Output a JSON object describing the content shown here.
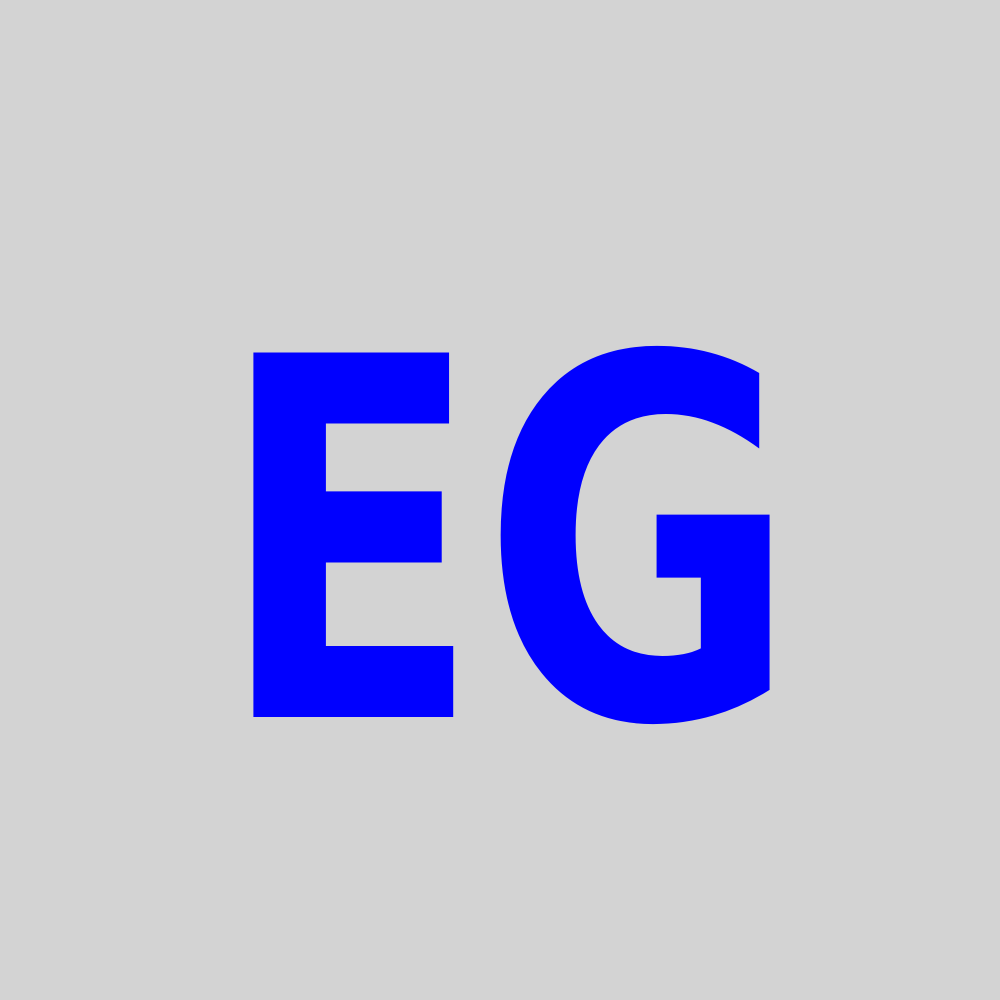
{
  "avatar": {
    "initials": "EG",
    "text_color": "#0000ff",
    "background_color": "#d3d3d3"
  }
}
